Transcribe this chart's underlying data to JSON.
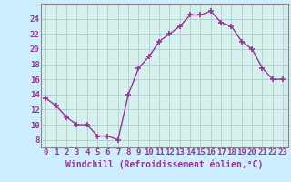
{
  "x": [
    0,
    1,
    2,
    3,
    4,
    5,
    6,
    7,
    8,
    9,
    10,
    11,
    12,
    13,
    14,
    15,
    16,
    17,
    18,
    19,
    20,
    21,
    22,
    23
  ],
  "y": [
    13.5,
    12.5,
    11.0,
    10.0,
    10.0,
    8.5,
    8.5,
    8.0,
    14.0,
    17.5,
    19.0,
    21.0,
    22.0,
    23.0,
    24.5,
    24.5,
    25.0,
    23.5,
    23.0,
    21.0,
    20.0,
    17.5,
    16.0,
    16.0
  ],
  "line_color": "#993399",
  "marker": "+",
  "marker_size": 5,
  "bg_color": "#cceeff",
  "plot_bg": "#d6f0ee",
  "grid_color": "#b0ccc8",
  "axis_color": "#993399",
  "spine_color": "#888888",
  "xlabel": "Windchill (Refroidissement éolien,°C)",
  "xlim": [
    -0.5,
    23.5
  ],
  "ylim": [
    7.0,
    26.0
  ],
  "yticks": [
    8,
    10,
    12,
    14,
    16,
    18,
    20,
    22,
    24
  ],
  "xticks": [
    0,
    1,
    2,
    3,
    4,
    5,
    6,
    7,
    8,
    9,
    10,
    11,
    12,
    13,
    14,
    15,
    16,
    17,
    18,
    19,
    20,
    21,
    22,
    23
  ],
  "xlabel_fontsize": 7.0,
  "tick_fontsize": 6.5
}
